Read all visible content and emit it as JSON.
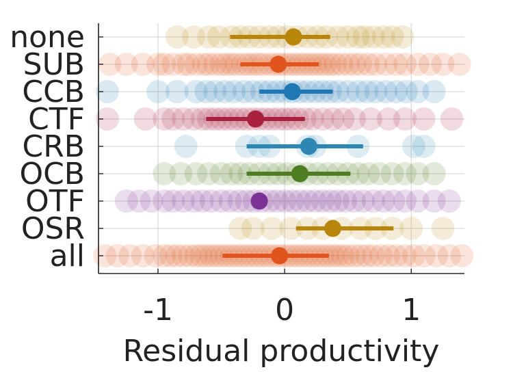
{
  "chart_data": {
    "type": "scatter",
    "title": "",
    "xlabel": "Residual productivity",
    "ylabel": "",
    "xlim": [
      -1.47,
      1.42
    ],
    "xticks": [
      -1,
      0,
      1
    ],
    "xtick_labels": [
      "-1",
      "0",
      "1"
    ],
    "grid": true,
    "legend": "none",
    "categories": [
      "none",
      "SUB",
      "CCB",
      "CTF",
      "CRB",
      "OCB",
      "OTF",
      "OSR",
      "all"
    ],
    "series": [
      {
        "name": "none",
        "color": "#b8860b",
        "mean": 0.07,
        "ci": [
          -0.43,
          0.36
        ],
        "points": [
          -0.85,
          -0.72,
          -0.6,
          -0.52,
          -0.42,
          -0.35,
          -0.28,
          -0.2,
          -0.12,
          -0.05,
          0.02,
          0.1,
          0.18,
          0.26,
          0.33,
          0.42,
          0.5,
          0.58,
          0.63,
          0.7,
          0.78,
          0.85,
          0.93
        ]
      },
      {
        "name": "SUB",
        "color": "#e0541e",
        "mean": -0.05,
        "ci": [
          -0.35,
          0.27
        ],
        "points": [
          -1.38,
          -1.25,
          -1.12,
          -1.0,
          -0.95,
          -0.88,
          -0.8,
          -0.76,
          -0.7,
          -0.64,
          -0.6,
          -0.55,
          -0.5,
          -0.46,
          -0.42,
          -0.38,
          -0.33,
          -0.29,
          -0.25,
          -0.21,
          -0.17,
          -0.12,
          -0.08,
          -0.04,
          0.0,
          0.04,
          0.08,
          0.12,
          0.16,
          0.2,
          0.24,
          0.28,
          0.32,
          0.36,
          0.4,
          0.45,
          0.5,
          0.55,
          0.6,
          0.66,
          0.72,
          0.8,
          0.88,
          0.95,
          1.05,
          1.15,
          1.25,
          1.38
        ]
      },
      {
        "name": "CCB",
        "color": "#1f78b4",
        "mean": 0.06,
        "ci": [
          -0.2,
          0.38
        ],
        "points": [
          -1.4,
          -1.0,
          -0.85,
          -0.7,
          -0.62,
          -0.55,
          -0.47,
          -0.4,
          -0.32,
          -0.25,
          -0.18,
          -0.12,
          -0.06,
          0.0,
          0.06,
          0.12,
          0.18,
          0.24,
          0.3,
          0.36,
          0.42,
          0.5,
          0.58,
          0.65,
          0.72,
          0.8,
          0.88,
          0.96,
          1.05,
          1.18
        ]
      },
      {
        "name": "CTF",
        "color": "#a8213f",
        "mean": -0.23,
        "ci": [
          -0.62,
          0.16
        ],
        "points": [
          -1.4,
          -1.1,
          -0.95,
          -0.88,
          -0.8,
          -0.72,
          -0.65,
          -0.6,
          -0.55,
          -0.5,
          -0.45,
          -0.4,
          -0.35,
          -0.3,
          -0.25,
          -0.2,
          -0.15,
          -0.1,
          -0.05,
          0.0,
          0.05,
          0.1,
          0.16,
          0.22,
          0.3,
          0.38,
          0.46,
          0.55,
          0.68,
          0.82,
          0.95,
          1.1,
          1.32
        ]
      },
      {
        "name": "CRB",
        "color": "#2e86b3",
        "mean": 0.19,
        "ci": [
          -0.3,
          0.62
        ],
        "points": [
          -0.78,
          -0.3,
          -0.2,
          -0.12,
          0.18,
          0.24,
          0.58,
          1.02,
          1.1
        ]
      },
      {
        "name": "OCB",
        "color": "#4f7d21",
        "mean": 0.12,
        "ci": [
          -0.3,
          0.52
        ],
        "points": [
          -0.95,
          -0.82,
          -0.7,
          -0.6,
          -0.5,
          -0.42,
          -0.35,
          -0.28,
          -0.2,
          -0.12,
          -0.05,
          0.02,
          0.1,
          0.18,
          0.26,
          0.34,
          0.42,
          0.5,
          0.58,
          0.66,
          0.75,
          0.85,
          0.95,
          1.05,
          1.18
        ]
      },
      {
        "name": "OTF",
        "color": "#7b3294",
        "mean": -0.2,
        "ci": [
          -0.2,
          -0.2
        ],
        "points": [
          -1.25,
          -1.15,
          -1.05,
          -0.95,
          -0.88,
          -0.8,
          -0.72,
          -0.65,
          -0.58,
          -0.5,
          -0.43,
          -0.36,
          -0.3,
          -0.24,
          -0.18,
          -0.12,
          -0.06,
          0.0,
          0.06,
          0.12,
          0.18,
          0.24,
          0.3,
          0.36,
          0.42,
          0.48,
          0.55,
          0.62,
          0.7,
          0.78,
          0.86,
          0.95,
          1.05,
          1.18,
          1.3
        ]
      },
      {
        "name": "OSR",
        "color": "#b8860b",
        "mean": 0.38,
        "ci": [
          0.09,
          0.86
        ],
        "points": [
          -0.35,
          -0.25,
          -0.1,
          0.05,
          0.18,
          0.3,
          0.45,
          0.6,
          0.72,
          0.85,
          1.0,
          1.25
        ]
      },
      {
        "name": "all",
        "color": "#e0541e",
        "mean": -0.04,
        "ci": [
          -0.49,
          0.35
        ],
        "points": [
          -1.42,
          -1.32,
          -1.22,
          -1.12,
          -1.02,
          -0.95,
          -0.9,
          -0.85,
          -0.8,
          -0.75,
          -0.7,
          -0.66,
          -0.62,
          -0.58,
          -0.54,
          -0.5,
          -0.46,
          -0.42,
          -0.38,
          -0.34,
          -0.3,
          -0.26,
          -0.22,
          -0.18,
          -0.14,
          -0.1,
          -0.06,
          -0.02,
          0.02,
          0.06,
          0.1,
          0.14,
          0.18,
          0.22,
          0.26,
          0.3,
          0.34,
          0.38,
          0.42,
          0.46,
          0.5,
          0.55,
          0.6,
          0.65,
          0.7,
          0.76,
          0.82,
          0.88,
          0.95,
          1.02,
          1.1,
          1.2,
          1.3,
          1.4
        ]
      }
    ]
  }
}
